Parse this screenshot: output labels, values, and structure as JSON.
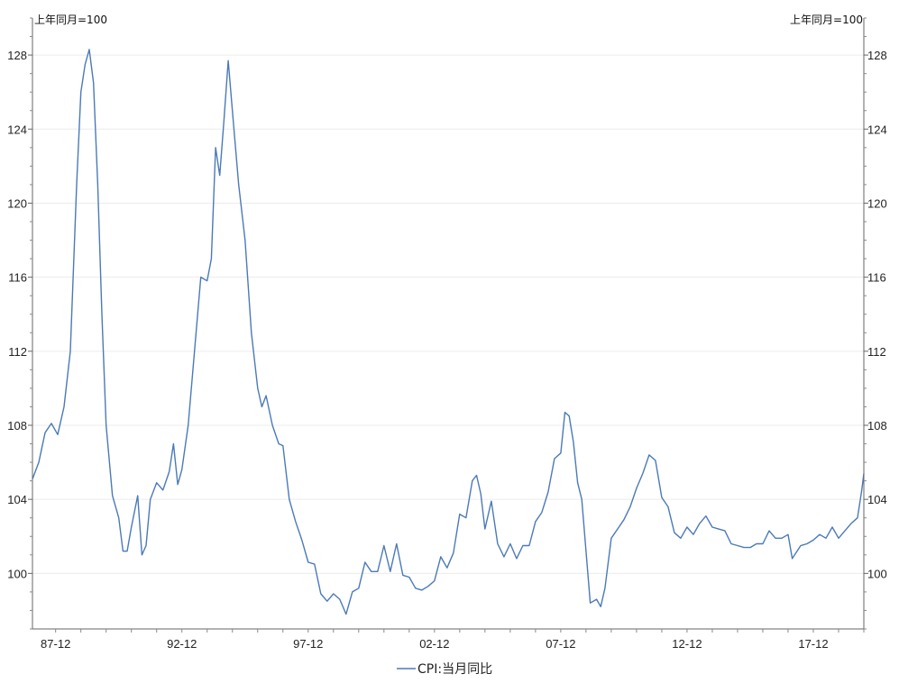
{
  "chart_data": {
    "type": "line",
    "y_unit_left": "上年同月=100",
    "y_unit_right": "上年同月=100",
    "x_tick_labels": [
      "87-12",
      "92-12",
      "97-12",
      "02-12",
      "07-12",
      "12-12",
      "17-12"
    ],
    "x_range": [
      "1987-01",
      "2019-12"
    ],
    "ylim": [
      97,
      130
    ],
    "y_ticks": [
      100,
      104,
      108,
      112,
      116,
      120,
      124,
      128
    ],
    "grid": true,
    "legend_position": "bottom",
    "line_color": "#4a7ab8",
    "series": [
      {
        "name": "CPI:当月同比",
        "points": [
          [
            "1987-01",
            105.1
          ],
          [
            "1987-04",
            106.0
          ],
          [
            "1987-07",
            107.6
          ],
          [
            "1987-10",
            108.1
          ],
          [
            "1988-01",
            107.5
          ],
          [
            "1988-04",
            109.0
          ],
          [
            "1988-07",
            112.0
          ],
          [
            "1988-10",
            121.0
          ],
          [
            "1988-12",
            126.0
          ],
          [
            "1989-02",
            127.5
          ],
          [
            "1989-04",
            128.3
          ],
          [
            "1989-06",
            126.5
          ],
          [
            "1989-08",
            121.0
          ],
          [
            "1989-10",
            114.0
          ],
          [
            "1989-12",
            108.0
          ],
          [
            "1990-03",
            104.2
          ],
          [
            "1990-06",
            103.0
          ],
          [
            "1990-08",
            101.2
          ],
          [
            "1990-10",
            101.2
          ],
          [
            "1990-12",
            102.5
          ],
          [
            "1991-03",
            104.2
          ],
          [
            "1991-05",
            101.0
          ],
          [
            "1991-07",
            101.5
          ],
          [
            "1991-09",
            104.0
          ],
          [
            "1991-12",
            104.9
          ],
          [
            "1992-03",
            104.5
          ],
          [
            "1992-06",
            105.5
          ],
          [
            "1992-08",
            107.0
          ],
          [
            "1992-10",
            104.8
          ],
          [
            "1992-12",
            105.6
          ],
          [
            "1993-03",
            108.0
          ],
          [
            "1993-06",
            112.0
          ],
          [
            "1993-09",
            116.0
          ],
          [
            "1993-12",
            115.8
          ],
          [
            "1994-02",
            117.0
          ],
          [
            "1994-04",
            123.0
          ],
          [
            "1994-06",
            121.5
          ],
          [
            "1994-08",
            124.5
          ],
          [
            "1994-10",
            127.7
          ],
          [
            "1994-12",
            125.0
          ],
          [
            "1995-03",
            121.0
          ],
          [
            "1995-06",
            118.0
          ],
          [
            "1995-09",
            113.0
          ],
          [
            "1995-12",
            110.0
          ],
          [
            "1996-02",
            109.0
          ],
          [
            "1996-04",
            109.6
          ],
          [
            "1996-07",
            108.0
          ],
          [
            "1996-10",
            107.0
          ],
          [
            "1996-12",
            106.9
          ],
          [
            "1997-03",
            104.0
          ],
          [
            "1997-06",
            102.8
          ],
          [
            "1997-09",
            101.8
          ],
          [
            "1997-12",
            100.6
          ],
          [
            "1998-03",
            100.5
          ],
          [
            "1998-06",
            98.9
          ],
          [
            "1998-09",
            98.5
          ],
          [
            "1998-12",
            98.9
          ],
          [
            "1999-03",
            98.6
          ],
          [
            "1999-06",
            97.8
          ],
          [
            "1999-09",
            99.0
          ],
          [
            "1999-12",
            99.2
          ],
          [
            "2000-03",
            100.6
          ],
          [
            "2000-06",
            100.1
          ],
          [
            "2000-09",
            100.1
          ],
          [
            "2000-12",
            101.5
          ],
          [
            "2001-03",
            100.1
          ],
          [
            "2001-06",
            101.6
          ],
          [
            "2001-09",
            99.9
          ],
          [
            "2001-12",
            99.8
          ],
          [
            "2002-03",
            99.2
          ],
          [
            "2002-06",
            99.1
          ],
          [
            "2002-09",
            99.3
          ],
          [
            "2002-12",
            99.6
          ],
          [
            "2003-03",
            100.9
          ],
          [
            "2003-06",
            100.3
          ],
          [
            "2003-09",
            101.1
          ],
          [
            "2003-12",
            103.2
          ],
          [
            "2004-03",
            103.0
          ],
          [
            "2004-06",
            105.0
          ],
          [
            "2004-08",
            105.3
          ],
          [
            "2004-10",
            104.3
          ],
          [
            "2004-12",
            102.4
          ],
          [
            "2005-03",
            103.9
          ],
          [
            "2005-06",
            101.6
          ],
          [
            "2005-09",
            100.9
          ],
          [
            "2005-12",
            101.6
          ],
          [
            "2006-03",
            100.8
          ],
          [
            "2006-06",
            101.5
          ],
          [
            "2006-09",
            101.5
          ],
          [
            "2006-12",
            102.8
          ],
          [
            "2007-03",
            103.3
          ],
          [
            "2007-06",
            104.4
          ],
          [
            "2007-09",
            106.2
          ],
          [
            "2007-12",
            106.5
          ],
          [
            "2008-02",
            108.7
          ],
          [
            "2008-04",
            108.5
          ],
          [
            "2008-06",
            107.1
          ],
          [
            "2008-08",
            104.9
          ],
          [
            "2008-10",
            104.0
          ],
          [
            "2008-12",
            101.2
          ],
          [
            "2009-02",
            98.4
          ],
          [
            "2009-05",
            98.6
          ],
          [
            "2009-07",
            98.2
          ],
          [
            "2009-09",
            99.2
          ],
          [
            "2009-12",
            101.9
          ],
          [
            "2010-03",
            102.4
          ],
          [
            "2010-06",
            102.9
          ],
          [
            "2010-09",
            103.6
          ],
          [
            "2010-12",
            104.6
          ],
          [
            "2011-03",
            105.4
          ],
          [
            "2011-06",
            106.4
          ],
          [
            "2011-09",
            106.1
          ],
          [
            "2011-12",
            104.1
          ],
          [
            "2012-03",
            103.6
          ],
          [
            "2012-06",
            102.2
          ],
          [
            "2012-09",
            101.9
          ],
          [
            "2012-12",
            102.5
          ],
          [
            "2013-03",
            102.1
          ],
          [
            "2013-06",
            102.7
          ],
          [
            "2013-09",
            103.1
          ],
          [
            "2013-12",
            102.5
          ],
          [
            "2014-03",
            102.4
          ],
          [
            "2014-06",
            102.3
          ],
          [
            "2014-09",
            101.6
          ],
          [
            "2014-12",
            101.5
          ],
          [
            "2015-03",
            101.4
          ],
          [
            "2015-06",
            101.4
          ],
          [
            "2015-09",
            101.6
          ],
          [
            "2015-12",
            101.6
          ],
          [
            "2016-03",
            102.3
          ],
          [
            "2016-06",
            101.9
          ],
          [
            "2016-09",
            101.9
          ],
          [
            "2016-12",
            102.1
          ],
          [
            "2017-02",
            100.8
          ],
          [
            "2017-06",
            101.5
          ],
          [
            "2017-09",
            101.6
          ],
          [
            "2017-12",
            101.8
          ],
          [
            "2018-03",
            102.1
          ],
          [
            "2018-06",
            101.9
          ],
          [
            "2018-09",
            102.5
          ],
          [
            "2018-12",
            101.9
          ],
          [
            "2019-03",
            102.3
          ],
          [
            "2019-06",
            102.7
          ],
          [
            "2019-09",
            103.0
          ],
          [
            "2019-11",
            104.5
          ],
          [
            "2019-12",
            105.4
          ]
        ]
      }
    ]
  }
}
